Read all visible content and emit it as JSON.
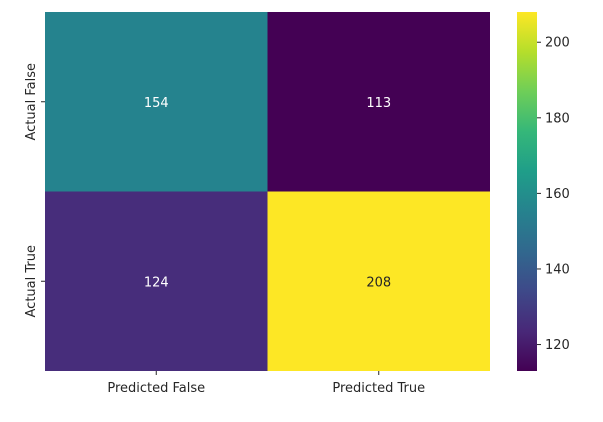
{
  "chart_data": {
    "type": "heatmap",
    "title": "",
    "xlabel": "",
    "ylabel": "",
    "x_categories": [
      "Predicted False",
      "Predicted True"
    ],
    "y_categories": [
      "Actual False",
      "Actual True"
    ],
    "values": [
      [
        154,
        113
      ],
      [
        124,
        208
      ]
    ],
    "colormap": "viridis",
    "color_range": [
      113,
      208
    ],
    "colorbar_ticks": [
      120,
      140,
      160,
      180,
      200
    ],
    "cell_text_colors": {
      "light": "#ffffff",
      "dark": "#262626"
    },
    "colors": {
      "cell_00": "#25838e",
      "cell_01": "#440154",
      "cell_10": "#472d7b",
      "cell_11": "#fde725"
    }
  }
}
